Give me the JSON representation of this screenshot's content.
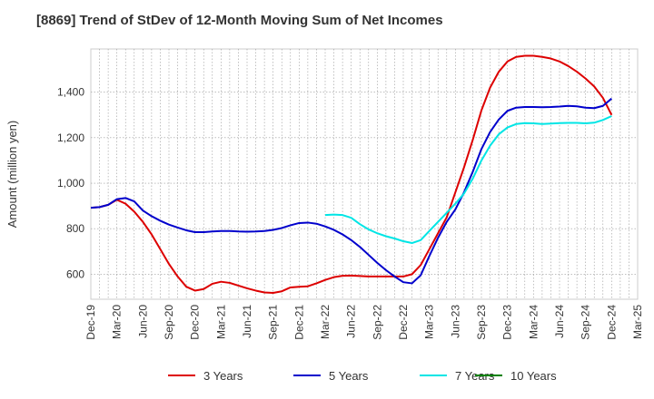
{
  "chart_data": {
    "type": "line",
    "title": "[8869]  Trend of StDev of 12-Month Moving Sum of Net Incomes",
    "xlabel": "",
    "ylabel": "Amount (million yen)",
    "ylim": [
      490,
      1590
    ],
    "yticks": [
      600,
      800,
      1000,
      1200,
      1400
    ],
    "ytick_labels": [
      "600",
      "800",
      "1,000",
      "1,200",
      "1,400"
    ],
    "xticks": [
      "Dec-19",
      "Mar-20",
      "Jun-20",
      "Sep-20",
      "Dec-20",
      "Mar-21",
      "Jun-21",
      "Sep-21",
      "Dec-21",
      "Mar-22",
      "Jun-22",
      "Sep-22",
      "Dec-22",
      "Mar-23",
      "Jun-23",
      "Sep-23",
      "Dec-23",
      "Mar-24",
      "Jun-24",
      "Sep-24",
      "Dec-24",
      "Mar-25"
    ],
    "grid": true,
    "legend_position": "bottom",
    "series": [
      {
        "name": "3 Years",
        "color": "#dd0000",
        "points": [
          [
            "Dec-19",
            892
          ],
          [
            "Jan-20",
            895
          ],
          [
            "Feb-20",
            905
          ],
          [
            "Mar-20",
            927
          ],
          [
            "Apr-20",
            910
          ],
          [
            "May-20",
            875
          ],
          [
            "Jun-20",
            830
          ],
          [
            "Jul-20",
            775
          ],
          [
            "Aug-20",
            710
          ],
          [
            "Sep-20",
            645
          ],
          [
            "Oct-20",
            590
          ],
          [
            "Nov-20",
            545
          ],
          [
            "Dec-20",
            528
          ],
          [
            "Jan-21",
            535
          ],
          [
            "Feb-21",
            558
          ],
          [
            "Mar-21",
            567
          ],
          [
            "Apr-21",
            562
          ],
          [
            "May-21",
            550
          ],
          [
            "Jun-21",
            538
          ],
          [
            "Jul-21",
            528
          ],
          [
            "Aug-21",
            520
          ],
          [
            "Sep-21",
            518
          ],
          [
            "Oct-21",
            525
          ],
          [
            "Nov-21",
            542
          ],
          [
            "Dec-21",
            545
          ],
          [
            "Jan-22",
            547
          ],
          [
            "Feb-22",
            560
          ],
          [
            "Mar-22",
            575
          ],
          [
            "Apr-22",
            587
          ],
          [
            "May-22",
            593
          ],
          [
            "Jun-22",
            594
          ],
          [
            "Jul-22",
            592
          ],
          [
            "Aug-22",
            590
          ],
          [
            "Sep-22",
            590
          ],
          [
            "Oct-22",
            590
          ],
          [
            "Nov-22",
            590
          ],
          [
            "Dec-22",
            590
          ],
          [
            "Jan-23",
            600
          ],
          [
            "Feb-23",
            640
          ],
          [
            "Mar-23",
            710
          ],
          [
            "Apr-23",
            780
          ],
          [
            "May-23",
            850
          ],
          [
            "Jun-23",
            960
          ],
          [
            "Jul-23",
            1070
          ],
          [
            "Aug-23",
            1190
          ],
          [
            "Sep-23",
            1320
          ],
          [
            "Oct-23",
            1420
          ],
          [
            "Nov-23",
            1490
          ],
          [
            "Dec-23",
            1535
          ],
          [
            "Jan-24",
            1555
          ],
          [
            "Feb-24",
            1560
          ],
          [
            "Mar-24",
            1560
          ],
          [
            "Apr-24",
            1555
          ],
          [
            "May-24",
            1548
          ],
          [
            "Jun-24",
            1535
          ],
          [
            "Jul-24",
            1515
          ],
          [
            "Aug-24",
            1490
          ],
          [
            "Sep-24",
            1460
          ],
          [
            "Oct-24",
            1425
          ],
          [
            "Nov-24",
            1375
          ],
          [
            "Dec-24",
            1300
          ]
        ]
      },
      {
        "name": "5 Years",
        "color": "#0000cc",
        "points": [
          [
            "Dec-19",
            892
          ],
          [
            "Jan-20",
            895
          ],
          [
            "Feb-20",
            905
          ],
          [
            "Mar-20",
            930
          ],
          [
            "Apr-20",
            935
          ],
          [
            "May-20",
            920
          ],
          [
            "Jun-20",
            880
          ],
          [
            "Jul-20",
            855
          ],
          [
            "Aug-20",
            835
          ],
          [
            "Sep-20",
            818
          ],
          [
            "Oct-20",
            805
          ],
          [
            "Nov-20",
            793
          ],
          [
            "Dec-20",
            785
          ],
          [
            "Jan-21",
            785
          ],
          [
            "Feb-21",
            788
          ],
          [
            "Mar-21",
            790
          ],
          [
            "Apr-21",
            790
          ],
          [
            "May-21",
            788
          ],
          [
            "Jun-21",
            787
          ],
          [
            "Jul-21",
            788
          ],
          [
            "Aug-21",
            790
          ],
          [
            "Sep-21",
            795
          ],
          [
            "Oct-21",
            803
          ],
          [
            "Nov-21",
            815
          ],
          [
            "Dec-21",
            825
          ],
          [
            "Jan-22",
            827
          ],
          [
            "Feb-22",
            822
          ],
          [
            "Mar-22",
            810
          ],
          [
            "Apr-22",
            795
          ],
          [
            "May-22",
            775
          ],
          [
            "Jun-22",
            750
          ],
          [
            "Jul-22",
            720
          ],
          [
            "Aug-22",
            685
          ],
          [
            "Sep-22",
            650
          ],
          [
            "Oct-22",
            618
          ],
          [
            "Nov-22",
            590
          ],
          [
            "Dec-22",
            565
          ],
          [
            "Jan-23",
            560
          ],
          [
            "Feb-23",
            595
          ],
          [
            "Mar-23",
            680
          ],
          [
            "Apr-23",
            760
          ],
          [
            "May-23",
            830
          ],
          [
            "Jun-23",
            885
          ],
          [
            "Jul-23",
            960
          ],
          [
            "Aug-23",
            1050
          ],
          [
            "Sep-23",
            1150
          ],
          [
            "Oct-23",
            1225
          ],
          [
            "Nov-23",
            1280
          ],
          [
            "Dec-23",
            1318
          ],
          [
            "Jan-24",
            1332
          ],
          [
            "Feb-24",
            1335
          ],
          [
            "Mar-24",
            1335
          ],
          [
            "Apr-24",
            1334
          ],
          [
            "May-24",
            1335
          ],
          [
            "Jun-24",
            1337
          ],
          [
            "Jul-24",
            1340
          ],
          [
            "Aug-24",
            1338
          ],
          [
            "Sep-24",
            1332
          ],
          [
            "Oct-24",
            1330
          ],
          [
            "Nov-24",
            1340
          ],
          [
            "Dec-24",
            1372
          ]
        ]
      },
      {
        "name": "7 Years",
        "color": "#00e5e5",
        "points": [
          [
            "Mar-22",
            860
          ],
          [
            "Apr-22",
            862
          ],
          [
            "May-22",
            860
          ],
          [
            "Jun-22",
            848
          ],
          [
            "Jul-22",
            820
          ],
          [
            "Aug-22",
            797
          ],
          [
            "Sep-22",
            780
          ],
          [
            "Oct-22",
            767
          ],
          [
            "Nov-22",
            757
          ],
          [
            "Dec-22",
            745
          ],
          [
            "Jan-23",
            737
          ],
          [
            "Feb-23",
            750
          ],
          [
            "Mar-23",
            790
          ],
          [
            "Apr-23",
            830
          ],
          [
            "May-23",
            870
          ],
          [
            "Jun-23",
            910
          ],
          [
            "Jul-23",
            955
          ],
          [
            "Aug-23",
            1020
          ],
          [
            "Sep-23",
            1100
          ],
          [
            "Oct-23",
            1165
          ],
          [
            "Nov-23",
            1215
          ],
          [
            "Dec-23",
            1245
          ],
          [
            "Jan-24",
            1260
          ],
          [
            "Feb-24",
            1264
          ],
          [
            "Mar-24",
            1263
          ],
          [
            "Apr-24",
            1260
          ],
          [
            "May-24",
            1262
          ],
          [
            "Jun-24",
            1264
          ],
          [
            "Jul-24",
            1265
          ],
          [
            "Aug-24",
            1265
          ],
          [
            "Sep-24",
            1263
          ],
          [
            "Oct-24",
            1266
          ],
          [
            "Nov-24",
            1278
          ],
          [
            "Dec-24",
            1295
          ]
        ]
      },
      {
        "name": "10 Years",
        "color": "#008000",
        "points": []
      }
    ]
  }
}
